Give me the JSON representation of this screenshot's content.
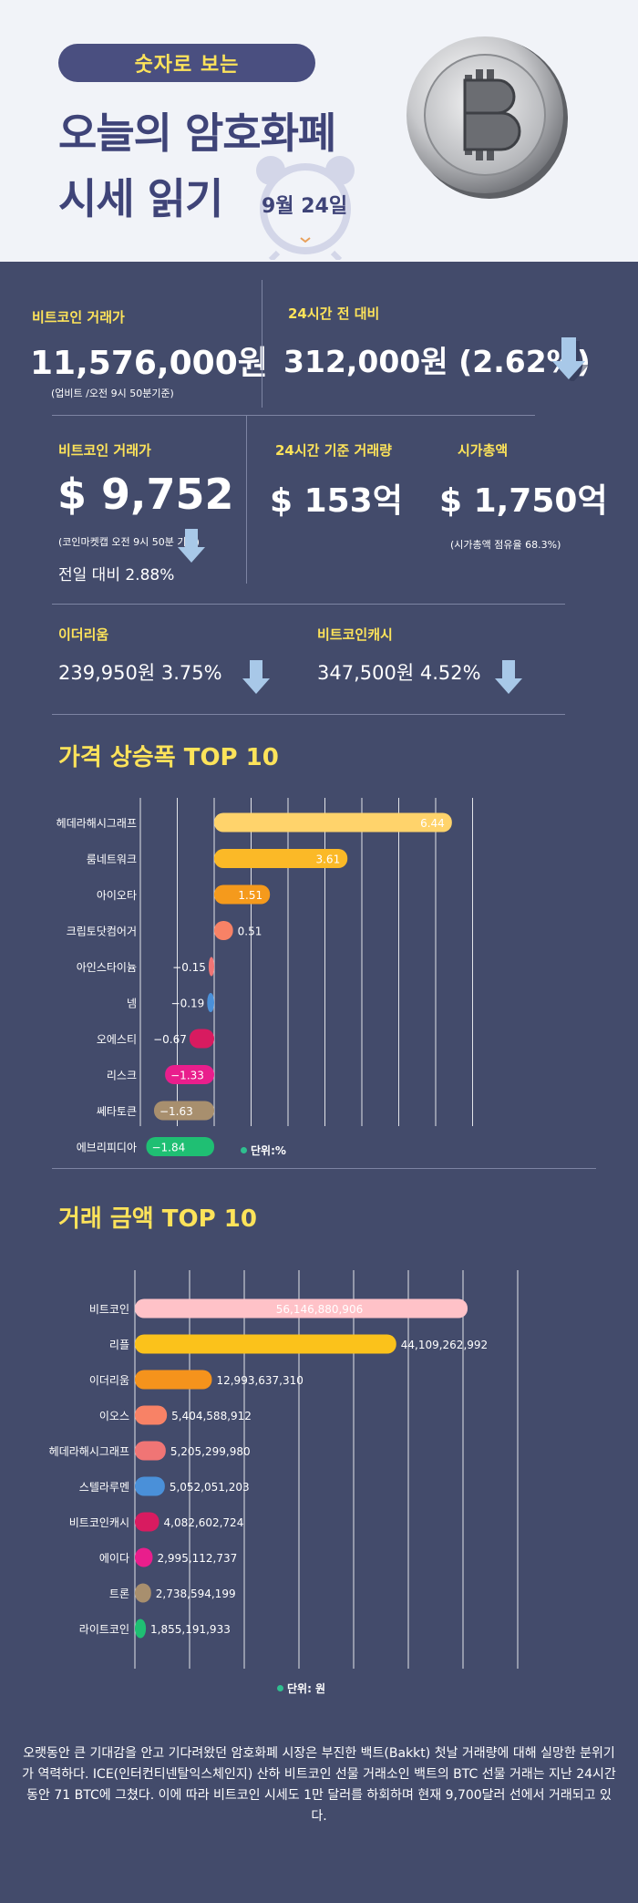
{
  "header": {
    "pill": "숫자로 보는",
    "title_line1": "오늘의 암호화폐",
    "title_line2": "시세 읽기",
    "date": "9월 24일"
  },
  "summary": {
    "btc_krw_label": "비트코인 거래가",
    "btc_krw_value": "11,576,000원",
    "btc_krw_note": "(업비트 /오전 9시 50분기준)",
    "change_label": "24시간 전 대비",
    "change_value": "312,000원 (2.62%)",
    "btc_usd_label": "비트코인 거래가",
    "btc_usd_value": "$ 9,752",
    "btc_usd_note": "(코인마켓캡 오전 9시 50분 기준)",
    "btc_usd_change": "전일 대비 2.88%",
    "volume_label": "24시간 기준 거래량",
    "volume_value": "$ 153억",
    "mcap_label": "시가총액",
    "mcap_value": "$ 1,750억",
    "mcap_note": "(시가총액 점유율 68.3%)",
    "eth_label": "이더리움",
    "eth_value": "239,950원  3.75%",
    "bch_label": "비트코인캐시",
    "bch_value": "347,500원   4.52%"
  },
  "colors": {
    "bg": "#434b6b",
    "accent": "#fde35a",
    "arrow": "#a8c8e8"
  },
  "chart_data": [
    {
      "type": "bar",
      "title": "가격 상승폭 TOP 10",
      "unit_label": "단위:%",
      "categories": [
        "헤데라해시그래프",
        "룸네트워크",
        "아이오타",
        "크립토닷컴어거",
        "아인스타이늄",
        "넴",
        "오에스티",
        "리스크",
        "쎄타토큰",
        "에브리피디아"
      ],
      "values": [
        6.44,
        3.61,
        1.51,
        0.51,
        -0.15,
        -0.19,
        -0.67,
        -1.33,
        -1.63,
        -1.84
      ],
      "value_labels": [
        "6.44",
        "3.61",
        "1.51",
        "0.51",
        "−0.15",
        "−0.19",
        "−0.67",
        "−1.33",
        "−1.63",
        "−1.84"
      ],
      "colors": [
        "#ffd36b",
        "#fbb927",
        "#f59a1c",
        "#f88266",
        "#f07575",
        "#4a90d9",
        "#d81b60",
        "#e91e8c",
        "#a88f6e",
        "#1fbf73"
      ],
      "xlim": [
        -2,
        7
      ],
      "grid": true
    },
    {
      "type": "bar",
      "title": "거래 금액 TOP 10",
      "unit_label": "단위: 원",
      "categories": [
        "비트코인",
        "리플",
        "이더리움",
        "이오스",
        "헤데라해시그래프",
        "스텔라루멘",
        "비트코인캐시",
        "에이다",
        "트론",
        "라이트코인"
      ],
      "values": [
        56146880906,
        44109262992,
        12993637310,
        5404588912,
        5205299980,
        5052051203,
        4082602724,
        2995112737,
        2738594199,
        1855191933
      ],
      "value_labels": [
        "56,146,880,906",
        "44,109,262,992",
        "12,993,637,310",
        "5,404,588,912",
        "5,205,299,980",
        "5,052,051,203",
        "4,082,602,724",
        "2,995,112,737",
        "2,738,594,199",
        "1,855,191,933"
      ],
      "colors": [
        "#ffc2c8",
        "#fbc21b",
        "#f5931c",
        "#f88266",
        "#f07575",
        "#4a90d9",
        "#d81b60",
        "#e91e8c",
        "#a88f6e",
        "#1fbf73"
      ],
      "xlim": [
        0,
        70000000000
      ],
      "grid": true
    }
  ],
  "footnote": "오랫동안 큰 기대감을 안고 기다려왔던 암호화폐 시장은 부진한 백트(Bakkt) 첫날 거래량에 대해 실망한 분위기가 역력하다. ICE(인터컨티넨탈익스체인지) 산하 비트코인 선물 거래소인 백트의 BTC 선물 거래는 지난 24시간 동안 71 BTC에 그쳤다. 이에 따라 비트코인 시세도 1만 달러를 하회하며 현재 9,700달러 선에서 거래되고 있다."
}
